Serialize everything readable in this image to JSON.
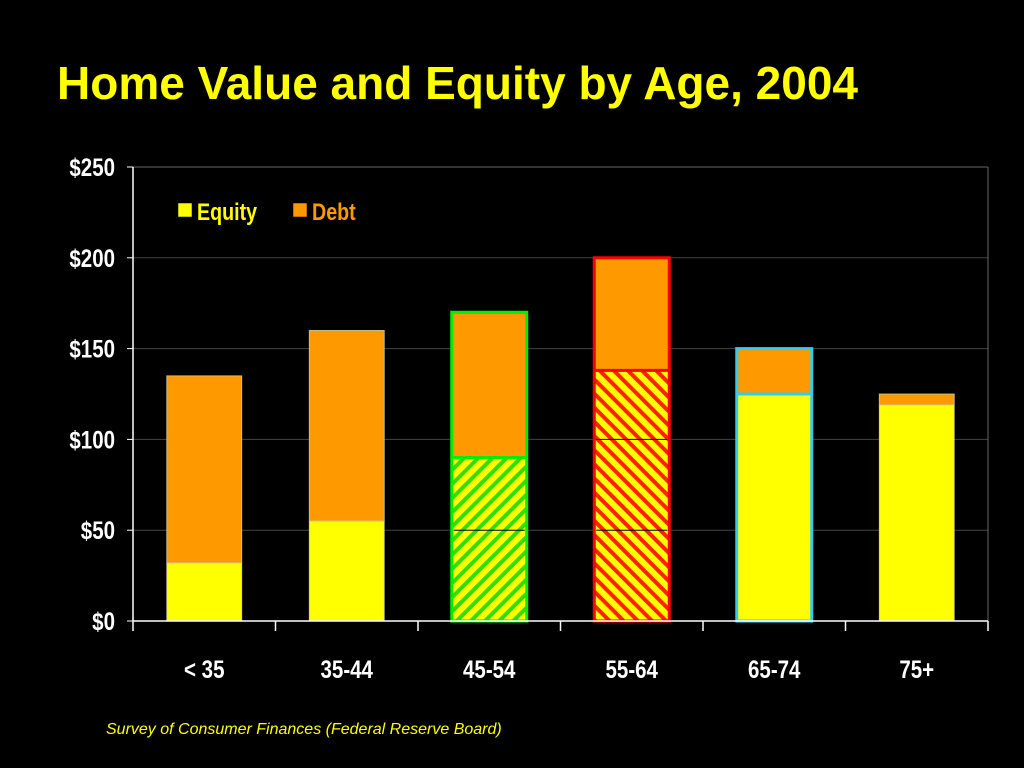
{
  "slide": {
    "title": "Home Value and Equity by Age, 2004",
    "source": "Survey of Consumer Finances (Federal Reserve Board)"
  },
  "chart_data": {
    "type": "bar",
    "stacked": true,
    "title": "Home Value and Equity by Age, 2004",
    "xlabel": "",
    "ylabel": "",
    "categories": [
      "< 35",
      "35-44",
      "45-54",
      "55-64",
      "65-74",
      "75+"
    ],
    "series": [
      {
        "name": "Equity",
        "color": "#FFFF00",
        "values": [
          32,
          55,
          90,
          138,
          125,
          119
        ]
      },
      {
        "name": "Debt",
        "color": "#FF9900",
        "values": [
          103,
          105,
          80,
          62,
          25,
          6
        ]
      }
    ],
    "ylim": [
      0,
      250
    ],
    "y_ticks": [
      0,
      50,
      100,
      150,
      200,
      250
    ],
    "y_tick_labels": [
      "$0",
      "$50",
      "$100",
      "$150",
      "$200",
      "$250"
    ],
    "grid": true,
    "legend_position": "top-left",
    "highlights": [
      {
        "category": "45-54",
        "outline_color": "#00EE00",
        "equity_pattern": "hatched"
      },
      {
        "category": "55-64",
        "outline_color": "#FF0000",
        "equity_pattern": "hatched"
      },
      {
        "category": "65-74",
        "outline_color": "#33CCEE",
        "equity_pattern": "solid"
      }
    ],
    "colors": {
      "background": "#000000",
      "text": "#FFFFFF",
      "title": "#FFFF00",
      "equity": "#FFFF00",
      "debt": "#FF9900",
      "grid": "#444444",
      "axis": "#FFFFFF"
    }
  }
}
